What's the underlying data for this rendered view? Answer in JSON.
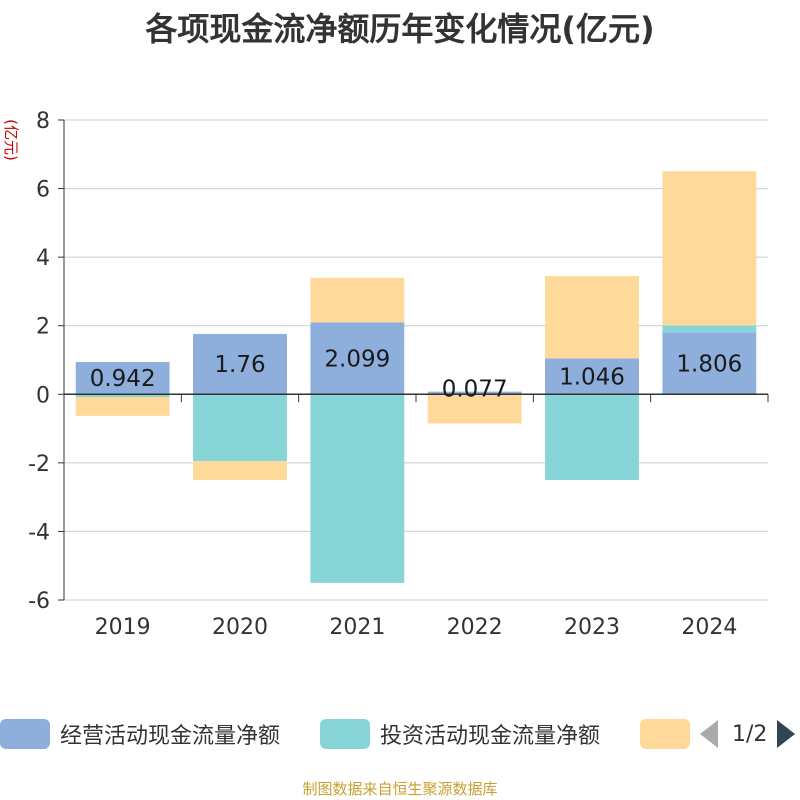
{
  "title": "各项现金流净额历年变化情况(亿元)",
  "source": "制图数据来自恒生聚源数据库",
  "legend": {
    "items": [
      {
        "label": "经营活动现金流量净额",
        "color": "#8eaedb"
      },
      {
        "label": "投资活动现金流量净额",
        "color": "#88d5d8"
      },
      {
        "label": "",
        "color": "#ffd99a"
      }
    ],
    "pager": "1/2"
  },
  "chart_data": {
    "type": "bar",
    "stacked": true,
    "ylabel": "(亿元)",
    "ylim": [
      -6,
      8
    ],
    "yticks": [
      -6,
      -4,
      -2,
      0,
      2,
      4,
      6,
      8
    ],
    "grid": true,
    "legend_position": "bottom",
    "categories": [
      "2019",
      "2020",
      "2021",
      "2022",
      "2023",
      "2024"
    ],
    "series": [
      {
        "name": "经营活动现金流量净额",
        "color": "#8eaedb",
        "values": [
          0.942,
          1.76,
          2.099,
          0.077,
          1.046,
          1.806
        ],
        "labels": [
          "0.942",
          "1.76",
          "2.099",
          "0.077",
          "1.046",
          "1.806"
        ]
      },
      {
        "name": "投资活动现金流量净额",
        "color": "#88d5d8",
        "values": [
          -0.08,
          -1.95,
          -5.5,
          0,
          -2.5,
          0.2
        ]
      },
      {
        "name": "",
        "color": "#ffd99a",
        "values": [
          -0.55,
          -0.55,
          1.3,
          -0.85,
          2.4,
          4.5
        ]
      }
    ]
  }
}
